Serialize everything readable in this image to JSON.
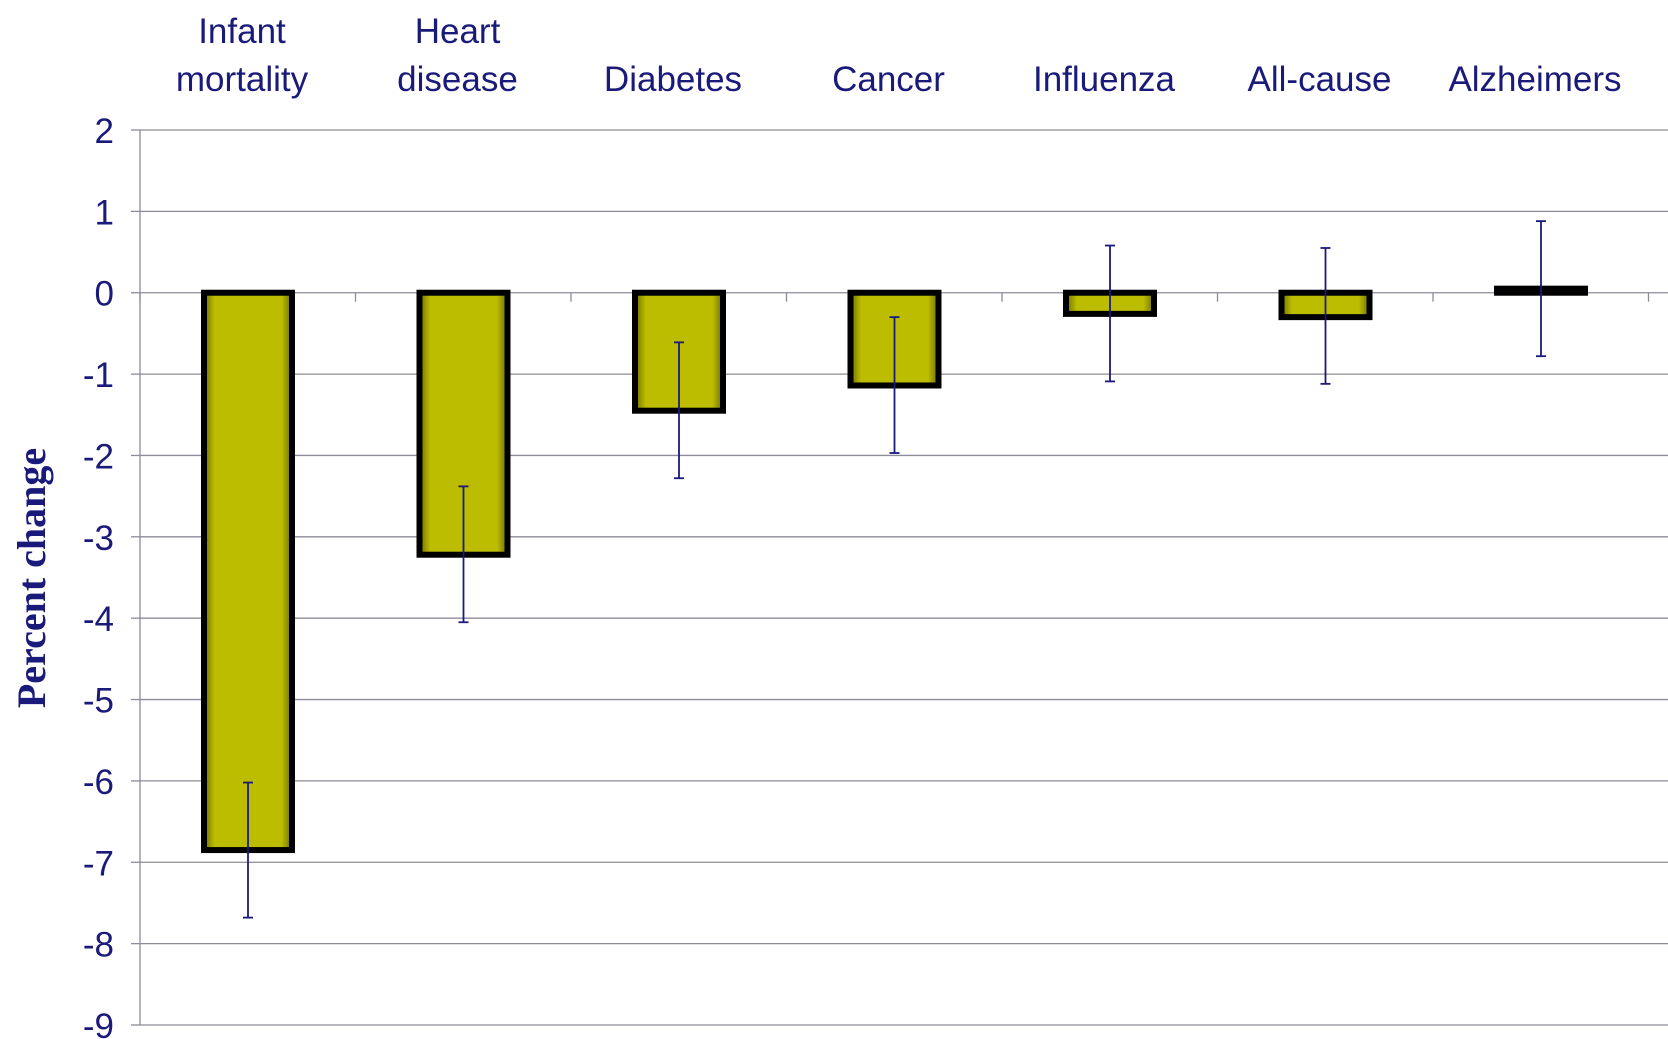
{
  "chart_data": {
    "type": "bar",
    "title": "",
    "xlabel": "",
    "ylabel": "Percent change",
    "ylim": [
      -9,
      2
    ],
    "yticks": [
      2,
      1,
      0,
      -1,
      -2,
      -3,
      -4,
      -5,
      -6,
      -7,
      -8,
      -9
    ],
    "grid": true,
    "legend": "none",
    "categories": [
      [
        "Infant",
        "mortality"
      ],
      [
        "Heart",
        "disease"
      ],
      [
        "Diabetes"
      ],
      [
        "Cancer"
      ],
      [
        "Influenza"
      ],
      [
        "All-cause"
      ],
      [
        "Alzheimers"
      ]
    ],
    "values": [
      -6.85,
      -3.22,
      -1.45,
      -1.14,
      -0.26,
      -0.3,
      0.05
    ],
    "error_low": [
      -7.68,
      -4.05,
      -2.28,
      -1.97,
      -1.09,
      -1.12,
      -0.78
    ],
    "error_high": [
      -6.02,
      -2.38,
      -0.61,
      -0.3,
      0.58,
      0.55,
      0.88
    ],
    "colors": {
      "bar_fill": "#bcbc00",
      "bar_edge": "#bcbc00",
      "bar_outline": "#000000",
      "error_bar": "#1a1a7a",
      "text": "#1a1a7a",
      "grid": "#8c8c9a"
    }
  }
}
